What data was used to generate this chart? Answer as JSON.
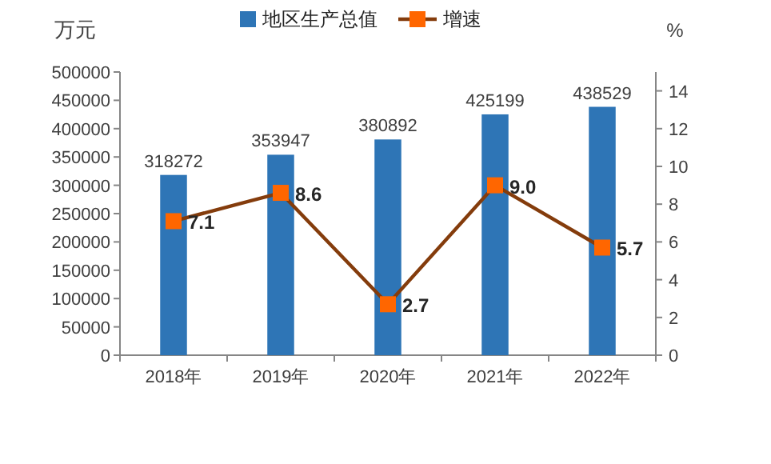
{
  "chart_data": {
    "type": "bar",
    "categories": [
      "2018年",
      "2019年",
      "2020年",
      "2021年",
      "2022年"
    ],
    "ylabel": "万元",
    "y2label": "%",
    "series": [
      {
        "name": "地区生产总值",
        "color": "#2e75b6",
        "values": [
          318272,
          353947,
          380892,
          425199,
          438529
        ],
        "value_labels": [
          "318272",
          "353947",
          "380892",
          "425199",
          "438529"
        ]
      },
      {
        "name": "增速",
        "type": "line",
        "axis": "y2",
        "color": "#843c0c",
        "marker": "square",
        "values": [
          7.1,
          8.6,
          2.7,
          9.0,
          5.7
        ],
        "value_labels": [
          "7.1",
          "8.6",
          "2.7",
          "9.0",
          "5.7"
        ]
      }
    ],
    "ylim": [
      0,
      500000
    ],
    "yticks": [
      0,
      50000,
      100000,
      150000,
      200000,
      250000,
      300000,
      350000,
      400000,
      450000,
      500000
    ],
    "y2lim": [
      0,
      15
    ],
    "y2ticks": [
      0,
      2,
      4,
      6,
      8,
      10,
      12,
      14
    ],
    "grid": false,
    "legend": "top"
  }
}
